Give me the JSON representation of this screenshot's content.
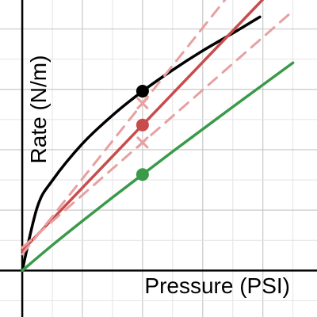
{
  "chart_data": {
    "type": "line",
    "title": "",
    "xlabel": "Pressure (PSI)",
    "ylabel": "Rate (N/m)",
    "xlim": [
      -0.37,
      4.9
    ],
    "ylim": [
      -0.77,
      4.48
    ],
    "grid": true,
    "legend": "none",
    "series": [
      {
        "color": "#000000",
        "style": "solid",
        "points": [
          [
            0,
            0
          ],
          [
            0.25,
            1.05
          ],
          [
            0.5,
            1.49
          ],
          [
            1.0,
            2.1
          ],
          [
            1.5,
            2.57
          ],
          [
            2.0,
            2.97
          ],
          [
            2.5,
            3.32
          ],
          [
            3.0,
            3.64
          ],
          [
            3.5,
            3.93
          ],
          [
            3.95,
            4.2
          ]
        ]
      },
      {
        "color": "#c94c4c",
        "style": "solid",
        "points": [
          [
            0,
            0.33
          ],
          [
            1.0,
            1.37
          ],
          [
            2.0,
            2.41
          ],
          [
            3.0,
            3.45
          ],
          [
            4.5,
            5.01
          ]
        ]
      },
      {
        "color": "#e8a0a0",
        "style": "dashed",
        "points": [
          [
            0,
            0.27
          ],
          [
            1.0,
            1.52
          ],
          [
            2.0,
            2.77
          ],
          [
            3.0,
            4.02
          ],
          [
            4.5,
            5.9
          ]
        ]
      },
      {
        "color": "#e8a0a0",
        "style": "dashed",
        "points": [
          [
            0,
            0.38
          ],
          [
            1.0,
            1.25
          ],
          [
            2.0,
            2.12
          ],
          [
            3.0,
            2.99
          ],
          [
            4.5,
            4.3
          ]
        ]
      },
      {
        "color": "#3a9a4a",
        "style": "solid",
        "points": [
          [
            0,
            0
          ],
          [
            0.5,
            0.42
          ],
          [
            1.0,
            0.82
          ],
          [
            1.5,
            1.21
          ],
          [
            2.0,
            1.59
          ],
          [
            2.5,
            1.97
          ],
          [
            3.0,
            2.34
          ],
          [
            3.5,
            2.71
          ],
          [
            4.5,
            3.44
          ]
        ]
      }
    ],
    "points": [
      {
        "x": 2.0,
        "y": 2.97,
        "color": "#000000",
        "marker": "dot"
      },
      {
        "x": 2.0,
        "y": 2.41,
        "color": "#c94c4c",
        "marker": "dot"
      },
      {
        "x": 2.0,
        "y": 1.59,
        "color": "#3a9a4a",
        "marker": "dot"
      },
      {
        "x": 2.0,
        "y": 2.77,
        "color": "#e8a0a0",
        "marker": "x"
      },
      {
        "x": 2.0,
        "y": 2.12,
        "color": "#e8a0a0",
        "marker": "x"
      }
    ]
  }
}
